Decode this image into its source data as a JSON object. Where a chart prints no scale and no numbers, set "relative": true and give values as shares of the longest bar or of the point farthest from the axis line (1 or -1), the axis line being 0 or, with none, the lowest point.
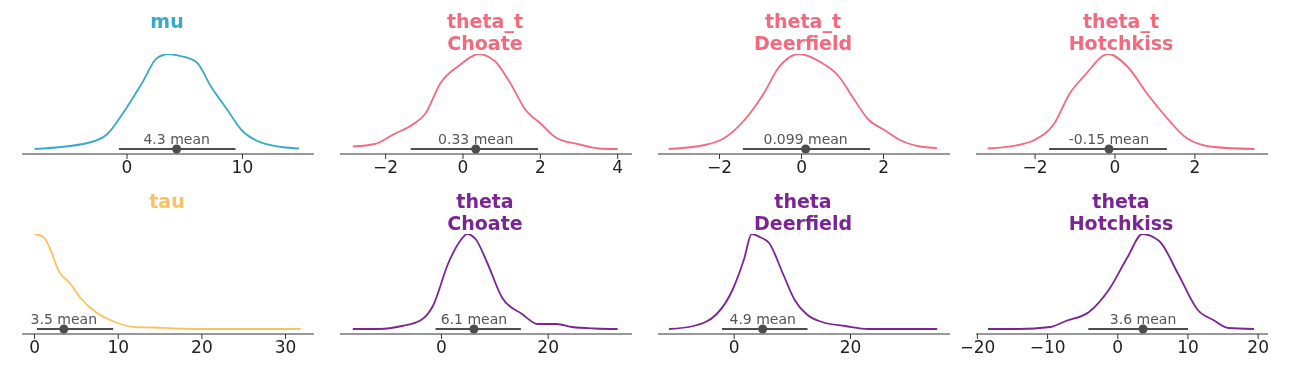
{
  "chart_data": [
    {
      "type": "line",
      "title": "mu",
      "relative": true,
      "xlim": [
        -9.1,
        16.2
      ],
      "xticks": [
        0,
        10
      ],
      "annotations": [
        {
          "text": "4.3 mean",
          "x": 4.3,
          "y": 0.05
        }
      ],
      "series": [
        {
          "color": "#37aac8",
          "marker": "none",
          "x": [
            -8,
            -3.4,
            -1.7,
            -0.4,
            1.3,
            2.6,
            3.6,
            4.6,
            6.0,
            7.3,
            8.7,
            10,
            11.3,
            13.4,
            14.9
          ],
          "values": [
            0.05,
            0.11,
            0.2,
            0.4,
            0.71,
            0.96,
            1.0,
            0.98,
            0.92,
            0.67,
            0.44,
            0.23,
            0.13,
            0.07,
            0.055
          ]
        },
        {
          "type": "line",
          "color": "#4d4d4d",
          "marker": "none",
          "x": [
            -0.7,
            9.4
          ],
          "values": [
            0.05,
            0.05
          ]
        },
        {
          "type": "scatter",
          "color": "#4d4d4d",
          "marker": "circle",
          "x": [
            4.3
          ],
          "values": [
            0.05
          ]
        }
      ]
    },
    {
      "type": "line",
      "title": "theta_t\nChoate",
      "relative": true,
      "xlim": [
        -3.18,
        4.37
      ],
      "xticks": [
        -2,
        0,
        2,
        4
      ],
      "annotations": [
        {
          "text": "0.33 mean",
          "x": 0.33,
          "y": 0.05
        }
      ],
      "series": [
        {
          "type": "line",
          "color": "#f5697d",
          "marker": "none",
          "x": [
            -2.85,
            -2.28,
            -1.78,
            -1.28,
            -0.98,
            -0.58,
            -0.08,
            0.4,
            0.82,
            1.22,
            1.62,
            2.02,
            2.42,
            3.02,
            3.52,
            4.0
          ],
          "values": [
            0.075,
            0.1,
            0.2,
            0.3,
            0.4,
            0.71,
            0.89,
            1.0,
            0.93,
            0.71,
            0.44,
            0.3,
            0.16,
            0.095,
            0.055,
            0.05
          ]
        },
        {
          "type": "line",
          "color": "#4d4d4d",
          "marker": "none",
          "x": [
            -1.35,
            1.94
          ],
          "values": [
            0.05,
            0.05
          ]
        },
        {
          "type": "scatter",
          "color": "#4d4d4d",
          "marker": "circle",
          "x": [
            0.33
          ],
          "values": [
            0.05
          ]
        }
      ]
    },
    {
      "type": "line",
      "title": "theta_t\nDeerfield",
      "relative": true,
      "xlim": [
        -3.5,
        3.62
      ],
      "xticks": [
        -2,
        0,
        2
      ],
      "annotations": [
        {
          "text": "0.099 mean",
          "x": 0.099,
          "y": 0.05
        }
      ],
      "series": [
        {
          "type": "line",
          "color": "#f5697d",
          "marker": "none",
          "x": [
            -3.24,
            -2.36,
            -1.88,
            -1.31,
            -0.93,
            -0.55,
            -0.06,
            0.5,
            0.88,
            1.26,
            1.64,
            2.02,
            2.4,
            2.97,
            3.3
          ],
          "values": [
            0.05,
            0.09,
            0.16,
            0.38,
            0.6,
            0.87,
            1.0,
            0.91,
            0.79,
            0.56,
            0.34,
            0.24,
            0.14,
            0.07,
            0.06
          ]
        },
        {
          "type": "line",
          "color": "#4d4d4d",
          "marker": "none",
          "x": [
            -1.43,
            1.67
          ],
          "values": [
            0.05,
            0.05
          ]
        },
        {
          "type": "scatter",
          "color": "#4d4d4d",
          "marker": "circle",
          "x": [
            0.099
          ],
          "values": [
            0.05
          ]
        }
      ]
    },
    {
      "type": "line",
      "title": "theta_t\nHotchkiss",
      "relative": true,
      "xlim": [
        -3.48,
        3.83
      ],
      "xticks": [
        -2,
        0,
        2
      ],
      "annotations": [
        {
          "text": "-0.15 mean",
          "x": -0.15,
          "y": 0.05
        }
      ],
      "series": [
        {
          "type": "line",
          "color": "#f5697d",
          "marker": "none",
          "x": [
            -3.19,
            -2.41,
            -2.02,
            -1.53,
            -1.14,
            -0.75,
            -0.17,
            0.32,
            0.81,
            1.3,
            1.79,
            2.47,
            3.49
          ],
          "values": [
            0.055,
            0.09,
            0.14,
            0.3,
            0.6,
            0.79,
            1.0,
            0.87,
            0.6,
            0.36,
            0.16,
            0.07,
            0.05
          ]
        },
        {
          "type": "line",
          "color": "#4d4d4d",
          "marker": "none",
          "x": [
            -1.65,
            1.3
          ],
          "values": [
            0.05,
            0.05
          ]
        },
        {
          "type": "scatter",
          "color": "#4d4d4d",
          "marker": "circle",
          "x": [
            -0.15
          ],
          "values": [
            0.05
          ]
        }
      ]
    },
    {
      "type": "line",
      "title": "tau",
      "relative": true,
      "xlim": [
        -1.5,
        33.4
      ],
      "xticks": [
        0,
        10,
        20,
        30
      ],
      "annotations": [
        {
          "text": "3.5 mean",
          "x": 3.5,
          "y": 0.05
        }
      ],
      "series": [
        {
          "type": "line",
          "color": "#fcc161",
          "marker": "none",
          "x": [
            0,
            1.06,
            1.76,
            2.9,
            4.3,
            5.5,
            7.3,
            9.6,
            11.9,
            14.3,
            16.6,
            21.2,
            25.8,
            31.8
          ],
          "values": [
            1.0,
            0.97,
            0.87,
            0.63,
            0.5,
            0.36,
            0.22,
            0.12,
            0.07,
            0.065,
            0.055,
            0.05,
            0.05,
            0.05
          ]
        },
        {
          "type": "line",
          "color": "#4d4d4d",
          "marker": "none",
          "x": [
            0.28,
            9.4
          ],
          "values": [
            0.05,
            0.05
          ]
        },
        {
          "type": "scatter",
          "color": "#4d4d4d",
          "marker": "circle",
          "x": [
            3.5
          ],
          "values": [
            0.05
          ]
        }
      ]
    },
    {
      "type": "line",
      "title": "theta\nChoate",
      "relative": true,
      "xlim": [
        -19,
        35.7
      ],
      "xticks": [
        0,
        20
      ],
      "annotations": [
        {
          "text": "6.1 mean",
          "x": 6.1,
          "y": 0.05
        }
      ],
      "series": [
        {
          "type": "line",
          "color": "#7b2496",
          "marker": "none",
          "x": [
            -16.6,
            -11.7,
            -7.4,
            -3.8,
            -1.6,
            1.3,
            3.5,
            4.8,
            6.4,
            8.6,
            11.4,
            15.1,
            18.0,
            21.6,
            24.5,
            28.8,
            33.0
          ],
          "values": [
            0.05,
            0.05,
            0.08,
            0.14,
            0.28,
            0.71,
            0.93,
            1.0,
            0.95,
            0.71,
            0.36,
            0.2,
            0.1,
            0.1,
            0.07,
            0.055,
            0.05
          ]
        },
        {
          "type": "line",
          "color": "#4d4d4d",
          "marker": "none",
          "x": [
            -1.1,
            14.9
          ],
          "values": [
            0.05,
            0.05
          ]
        },
        {
          "type": "scatter",
          "color": "#4d4d4d",
          "marker": "circle",
          "x": [
            6.1
          ],
          "values": [
            0.05
          ]
        }
      ]
    },
    {
      "type": "line",
      "title": "theta\nDeerfield",
      "relative": true,
      "xlim": [
        -13.1,
        37.1
      ],
      "xticks": [
        0,
        20
      ],
      "annotations": [
        {
          "text": "4.9 mean",
          "x": 4.9,
          "y": 0.05
        }
      ],
      "series": [
        {
          "type": "line",
          "color": "#7b2496",
          "marker": "none",
          "x": [
            -11.2,
            -7.0,
            -3.0,
            -0.3,
            1.7,
            3.0,
            4.4,
            6.0,
            8.4,
            10.4,
            12.4,
            15.1,
            19.1,
            23.1,
            29.9,
            34.9
          ],
          "values": [
            0.05,
            0.08,
            0.2,
            0.44,
            0.75,
            1.0,
            0.97,
            0.91,
            0.6,
            0.34,
            0.2,
            0.12,
            0.08,
            0.05,
            0.05,
            0.05
          ]
        },
        {
          "type": "line",
          "color": "#4d4d4d",
          "marker": "none",
          "x": [
            -2.1,
            12.6
          ],
          "values": [
            0.05,
            0.05
          ]
        },
        {
          "type": "scatter",
          "color": "#4d4d4d",
          "marker": "circle",
          "x": [
            4.9
          ],
          "values": [
            0.05
          ]
        }
      ]
    },
    {
      "type": "line",
      "title": "theta\nHotchkiss",
      "relative": true,
      "xlim": [
        -20.2,
        21.4
      ],
      "xticks": [
        -20,
        -10,
        0,
        10,
        20
      ],
      "annotations": [
        {
          "text": "3.6 mean",
          "x": 3.6,
          "y": 0.05
        }
      ],
      "series": [
        {
          "type": "line",
          "color": "#7b2496",
          "marker": "none",
          "x": [
            -18.5,
            -14.1,
            -9.6,
            -7.4,
            -4.1,
            -1.3,
            1.4,
            3.5,
            5.9,
            8.6,
            11.4,
            13.6,
            15.8,
            19.4
          ],
          "values": [
            0.05,
            0.05,
            0.07,
            0.13,
            0.22,
            0.44,
            0.77,
            1.0,
            0.93,
            0.6,
            0.24,
            0.14,
            0.06,
            0.05
          ]
        },
        {
          "type": "line",
          "color": "#4d4d4d",
          "marker": "none",
          "x": [
            -4.2,
            10.0
          ],
          "values": [
            0.05,
            0.05
          ]
        },
        {
          "type": "scatter",
          "color": "#4d4d4d",
          "marker": "circle",
          "x": [
            3.6
          ],
          "values": [
            0.05
          ]
        }
      ]
    }
  ]
}
